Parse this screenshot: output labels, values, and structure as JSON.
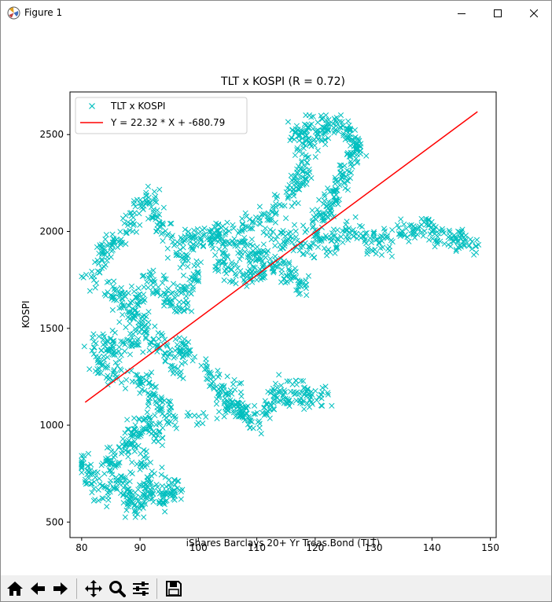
{
  "window": {
    "title": "Figure 1",
    "buttons": [
      "minimize",
      "maximize",
      "close"
    ]
  },
  "toolbar": {
    "icons": [
      "home-icon",
      "back-icon",
      "forward-icon",
      "pan-icon",
      "zoom-icon",
      "configure-subplots-icon",
      "save-icon"
    ]
  },
  "chart_data": {
    "type": "scatter",
    "title": "TLT x KOSPI (R = 0.72)",
    "xlabel": "iShares Barclays 20+ Yr Treas.Bond (TLT)",
    "ylabel": "KOSPI",
    "xlim": [
      78,
      151
    ],
    "ylim": [
      420,
      2720
    ],
    "xticks": [
      80,
      90,
      100,
      110,
      120,
      130,
      140,
      150
    ],
    "yticks": [
      500,
      1000,
      1500,
      2000,
      2500
    ],
    "grid": false,
    "legend_position": "top-left",
    "colors": {
      "scatter": "#00bfbf",
      "fit_line": "#ff0000"
    },
    "series": [
      {
        "name": "TLT x KOSPI",
        "marker": "x",
        "color": "#00bfbf",
        "point_count": 2300,
        "anchors": [
          [
            80.5,
            780
          ],
          [
            82,
            720
          ],
          [
            84,
            650
          ],
          [
            85,
            790
          ],
          [
            86,
            880
          ],
          [
            87,
            720
          ],
          [
            88,
            630
          ],
          [
            89,
            560
          ],
          [
            90,
            620
          ],
          [
            91,
            680
          ],
          [
            92,
            720
          ],
          [
            93,
            640
          ],
          [
            94,
            610
          ],
          [
            95,
            650
          ],
          [
            96,
            670
          ],
          [
            90,
            820
          ],
          [
            88,
            900
          ],
          [
            89,
            980
          ],
          [
            91,
            1010
          ],
          [
            93,
            960
          ],
          [
            95,
            1030
          ],
          [
            94,
            1100
          ],
          [
            92,
            1150
          ],
          [
            91,
            1230
          ],
          [
            89,
            1250
          ],
          [
            86,
            1300
          ],
          [
            84,
            1280
          ],
          [
            83,
            1340
          ],
          [
            82,
            1440
          ],
          [
            85,
            1420
          ],
          [
            87,
            1380
          ],
          [
            89,
            1420
          ],
          [
            91,
            1480
          ],
          [
            93,
            1420
          ],
          [
            95,
            1360
          ],
          [
            97,
            1400
          ],
          [
            98,
            1380
          ],
          [
            96,
            1300
          ],
          [
            90,
            1520
          ],
          [
            89,
            1600
          ],
          [
            90,
            1680
          ],
          [
            91,
            1760
          ],
          [
            93,
            1720
          ],
          [
            95,
            1660
          ],
          [
            97,
            1620
          ],
          [
            98,
            1700
          ],
          [
            99,
            1780
          ],
          [
            98,
            1880
          ],
          [
            96,
            1930
          ],
          [
            94,
            2000
          ],
          [
            93,
            2100
          ],
          [
            92,
            2180
          ],
          [
            90,
            2130
          ],
          [
            88,
            2040
          ],
          [
            86,
            1960
          ],
          [
            84,
            1900
          ],
          [
            83,
            1820
          ],
          [
            82,
            1740
          ],
          [
            85,
            1700
          ],
          [
            87,
            1650
          ],
          [
            88,
            1560
          ],
          [
            99,
            1960
          ],
          [
            101,
            1960
          ],
          [
            103,
            1980
          ],
          [
            105,
            1980
          ],
          [
            107,
            1930
          ],
          [
            109,
            1880
          ],
          [
            111,
            1870
          ],
          [
            113,
            1960
          ],
          [
            115,
            1970
          ],
          [
            117,
            1950
          ],
          [
            119,
            1920
          ],
          [
            121,
            1960
          ],
          [
            123,
            1940
          ],
          [
            125,
            1990
          ],
          [
            127,
            2000
          ],
          [
            129,
            1940
          ],
          [
            131,
            1960
          ],
          [
            133,
            1950
          ],
          [
            135,
            1990
          ],
          [
            137,
            2010
          ],
          [
            139,
            2030
          ],
          [
            141,
            1980
          ],
          [
            143,
            1960
          ],
          [
            145,
            1950
          ],
          [
            147,
            1940
          ],
          [
            104,
            1850
          ],
          [
            106,
            1800
          ],
          [
            108,
            1760
          ],
          [
            110,
            1780
          ],
          [
            112,
            1820
          ],
          [
            114,
            1840
          ],
          [
            116,
            1780
          ],
          [
            118,
            1740
          ],
          [
            108,
            2030
          ],
          [
            110,
            2050
          ],
          [
            112,
            2080
          ],
          [
            114,
            2120
          ],
          [
            116,
            2200
          ],
          [
            117,
            2250
          ],
          [
            118,
            2300
          ],
          [
            119,
            2380
          ],
          [
            118,
            2450
          ],
          [
            117,
            2510
          ],
          [
            119,
            2550
          ],
          [
            121,
            2500
          ],
          [
            122,
            2560
          ],
          [
            124,
            2540
          ],
          [
            126,
            2500
          ],
          [
            127,
            2440
          ],
          [
            126,
            2370
          ],
          [
            125,
            2300
          ],
          [
            124,
            2240
          ],
          [
            123,
            2180
          ],
          [
            122,
            2120
          ],
          [
            121,
            2060
          ],
          [
            120,
            2000
          ],
          [
            102,
            1300
          ],
          [
            103,
            1220
          ],
          [
            104,
            1150
          ],
          [
            105,
            1100
          ],
          [
            106,
            1180
          ],
          [
            107,
            1080
          ],
          [
            108,
            1060
          ],
          [
            110,
            1030
          ],
          [
            112,
            1100
          ],
          [
            113,
            1180
          ],
          [
            115,
            1150
          ],
          [
            117,
            1180
          ],
          [
            119,
            1150
          ],
          [
            121,
            1150
          ],
          [
            100,
            1050
          ]
        ]
      },
      {
        "name": "Y = 22.32 * X + -680.79",
        "type": "line",
        "color": "#ff0000",
        "slope": 22.32,
        "intercept": -680.79,
        "x_range": [
          80.6,
          147.8
        ]
      }
    ]
  }
}
